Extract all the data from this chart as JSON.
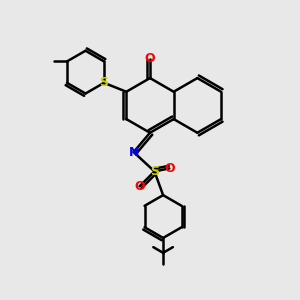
{
  "bg_color": "#e8e8e8",
  "bond_color": "#000000",
  "atom_colors": {
    "O": "#ff0000",
    "N": "#0000ff",
    "S": "#cccc00",
    "S2": "#cccc00",
    "C": "#000000"
  },
  "line_width": 1.8,
  "font_size": 9,
  "figsize": [
    3.0,
    3.0
  ],
  "dpi": 100
}
